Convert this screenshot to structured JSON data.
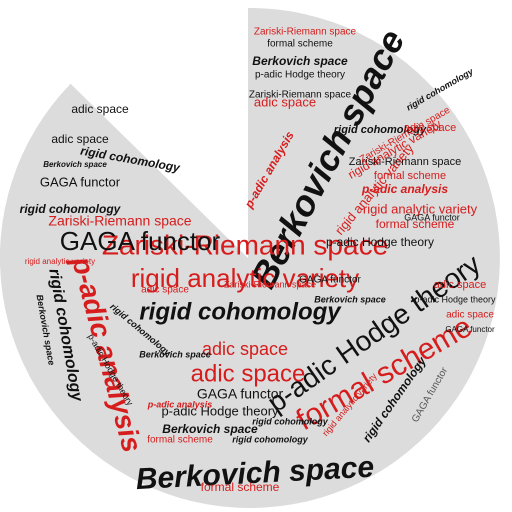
{
  "colors": {
    "background_shape": "#dcdcdc",
    "black": "#111111",
    "red": "#d61c1c",
    "gray": "#555555"
  },
  "words": [
    "Berkovich space",
    "rigid cohomology",
    "p-adic analysis",
    "GAGA functor",
    "Zariski-Riemann space",
    "rigid analytic variety",
    "adic space",
    "formal scheme",
    "p-adic Hodge theory"
  ]
}
